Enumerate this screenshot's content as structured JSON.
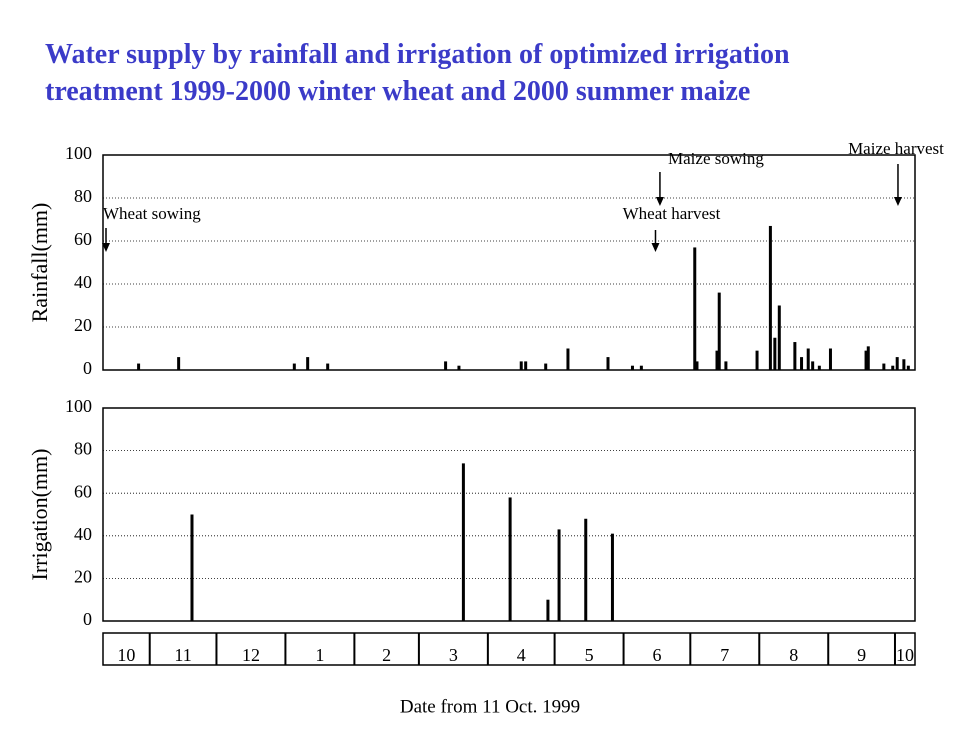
{
  "title": [
    "Water supply by rainfall and irrigation of optimized irrigation",
    "treatment 1999-2000 winter wheat and 2000 summer maize"
  ],
  "xlabel": "Date from 11 Oct. 1999",
  "month_axis": {
    "xticks": [
      21,
      51,
      82,
      113,
      142,
      173,
      203,
      234,
      264,
      295,
      326,
      356
    ],
    "labels": [
      "10",
      "11",
      "12",
      "1",
      "2",
      "3",
      "4",
      "5",
      "6",
      "7",
      "8",
      "9",
      "10"
    ]
  },
  "chart_data": [
    {
      "type": "bar",
      "ylabel": "Rainfall(mm)",
      "color": "#000000",
      "xlim": [
        0,
        365
      ],
      "ylim": [
        0,
        100
      ],
      "yticks": [
        0,
        20,
        40,
        60,
        80,
        100
      ],
      "grid": true,
      "x": [
        16,
        34,
        86,
        92,
        101,
        154,
        160,
        188,
        190,
        199,
        209,
        227,
        238,
        242,
        266,
        267,
        276,
        277,
        280,
        294,
        300,
        302,
        304,
        311,
        314,
        317,
        319,
        322,
        327,
        343,
        344,
        351,
        355,
        357,
        360,
        362
      ],
      "values": [
        3,
        6,
        3,
        6,
        3,
        4,
        2,
        4,
        4,
        3,
        10,
        6,
        2,
        2,
        57,
        4,
        9,
        36,
        4,
        9,
        67,
        15,
        30,
        13,
        6,
        10,
        4,
        2,
        10,
        9,
        11,
        3,
        2,
        6,
        5,
        2
      ],
      "annotations": [
        {
          "text": "Wheat sowing",
          "x": 0
        },
        {
          "text": "Wheat harvest",
          "x": 247
        },
        {
          "text": "Maize sowing",
          "x": 249
        },
        {
          "text": "Maize harvest",
          "x": 356
        }
      ]
    },
    {
      "type": "bar",
      "ylabel": "Irrigation(mm)",
      "color": "#000000",
      "xlim": [
        0,
        365
      ],
      "ylim": [
        0,
        100
      ],
      "yticks": [
        0,
        20,
        40,
        60,
        80,
        100
      ],
      "grid": true,
      "x": [
        40,
        162,
        183,
        200,
        205,
        217,
        229
      ],
      "values": [
        50,
        74,
        58,
        10,
        43,
        48,
        41
      ]
    }
  ]
}
